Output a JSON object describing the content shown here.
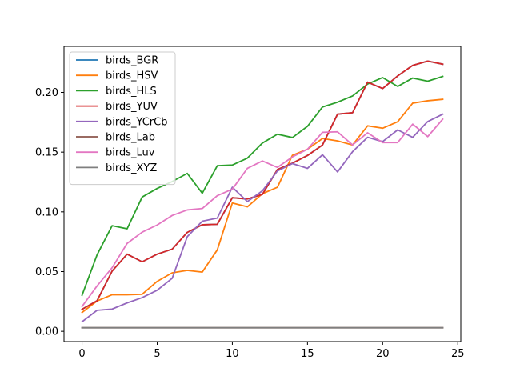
{
  "chart_data": {
    "type": "line",
    "title": "",
    "xlabel": "",
    "ylabel": "",
    "xlim": [
      -1.2,
      25.2
    ],
    "ylim": [
      -0.0086,
      0.2385
    ],
    "xticks": [
      0,
      5,
      10,
      15,
      20,
      25
    ],
    "xtick_labels": [
      "0",
      "5",
      "10",
      "15",
      "20",
      "25"
    ],
    "yticks": [
      0.0,
      0.05,
      0.1,
      0.15,
      0.2
    ],
    "ytick_labels": [
      "0.00",
      "0.05",
      "0.10",
      "0.15",
      "0.20"
    ],
    "grid": false,
    "legend": "upper left",
    "x": [
      0,
      1,
      2,
      3,
      4,
      5,
      6,
      7,
      8,
      9,
      10,
      11,
      12,
      13,
      14,
      15,
      16,
      17,
      18,
      19,
      20,
      21,
      22,
      23,
      24
    ],
    "series": [
      {
        "name": "birds_BGR",
        "color": "#1f77b4",
        "values": [
          0.0184,
          0.0256,
          0.0504,
          0.0646,
          0.0582,
          0.0646,
          0.0688,
          0.0828,
          0.0892,
          0.0896,
          0.1118,
          0.1108,
          0.1146,
          0.1354,
          0.1408,
          0.1472,
          0.156,
          0.1818,
          0.183,
          0.2086,
          0.2032,
          0.2138,
          0.2226,
          0.2262,
          0.2236
        ]
      },
      {
        "name": "birds_HSV",
        "color": "#ff7f0e",
        "values": [
          0.0158,
          0.0254,
          0.0306,
          0.0306,
          0.031,
          0.0418,
          0.049,
          0.051,
          0.0496,
          0.0682,
          0.1074,
          0.1042,
          0.1152,
          0.1206,
          0.1474,
          0.1524,
          0.1614,
          0.1594,
          0.156,
          0.172,
          0.17,
          0.1754,
          0.191,
          0.193,
          0.1942
        ]
      },
      {
        "name": "birds_HLS",
        "color": "#2ca02c",
        "values": [
          0.0302,
          0.064,
          0.0884,
          0.0858,
          0.1124,
          0.1196,
          0.1254,
          0.1322,
          0.1156,
          0.1386,
          0.1392,
          0.145,
          0.1576,
          0.165,
          0.1622,
          0.1716,
          0.1878,
          0.1918,
          0.197,
          0.207,
          0.2124,
          0.205,
          0.212,
          0.2094,
          0.2134
        ]
      },
      {
        "name": "birds_YUV",
        "color": "#d62728",
        "values": [
          0.0184,
          0.0256,
          0.0504,
          0.0646,
          0.0582,
          0.0646,
          0.0688,
          0.0828,
          0.0892,
          0.0896,
          0.1118,
          0.1108,
          0.1146,
          0.1354,
          0.1408,
          0.1472,
          0.156,
          0.1818,
          0.183,
          0.2086,
          0.2032,
          0.2138,
          0.2226,
          0.2262,
          0.2236
        ]
      },
      {
        "name": "birds_YCrCb",
        "color": "#9467bd",
        "values": [
          0.008,
          0.0176,
          0.0186,
          0.0238,
          0.0282,
          0.0344,
          0.0444,
          0.0792,
          0.0922,
          0.0948,
          0.1206,
          0.1086,
          0.1176,
          0.1342,
          0.1404,
          0.1364,
          0.1478,
          0.1334,
          0.1504,
          0.1624,
          0.1588,
          0.1686,
          0.1624,
          0.1756,
          0.1818
        ]
      },
      {
        "name": "birds_Lab",
        "color": "#8c564b",
        "values": [
          0.003,
          0.003,
          0.003,
          0.003,
          0.003,
          0.003,
          0.003,
          0.003,
          0.003,
          0.003,
          0.003,
          0.003,
          0.003,
          0.003,
          0.003,
          0.003,
          0.003,
          0.003,
          0.003,
          0.003,
          0.003,
          0.003,
          0.003,
          0.003,
          0.003
        ]
      },
      {
        "name": "birds_Luv",
        "color": "#e377c2",
        "values": [
          0.0208,
          0.038,
          0.0532,
          0.0736,
          0.083,
          0.089,
          0.097,
          0.1016,
          0.1028,
          0.1136,
          0.119,
          0.1364,
          0.1426,
          0.1372,
          0.146,
          0.1524,
          0.1666,
          0.167,
          0.156,
          0.1662,
          0.158,
          0.158,
          0.1734,
          0.163,
          0.1776
        ]
      },
      {
        "name": "birds_XYZ",
        "color": "#7f7f7f",
        "values": [
          0.003,
          0.003,
          0.003,
          0.003,
          0.003,
          0.003,
          0.003,
          0.003,
          0.003,
          0.003,
          0.003,
          0.003,
          0.003,
          0.003,
          0.003,
          0.003,
          0.003,
          0.003,
          0.003,
          0.003,
          0.003,
          0.003,
          0.003,
          0.003,
          0.003
        ]
      }
    ]
  }
}
